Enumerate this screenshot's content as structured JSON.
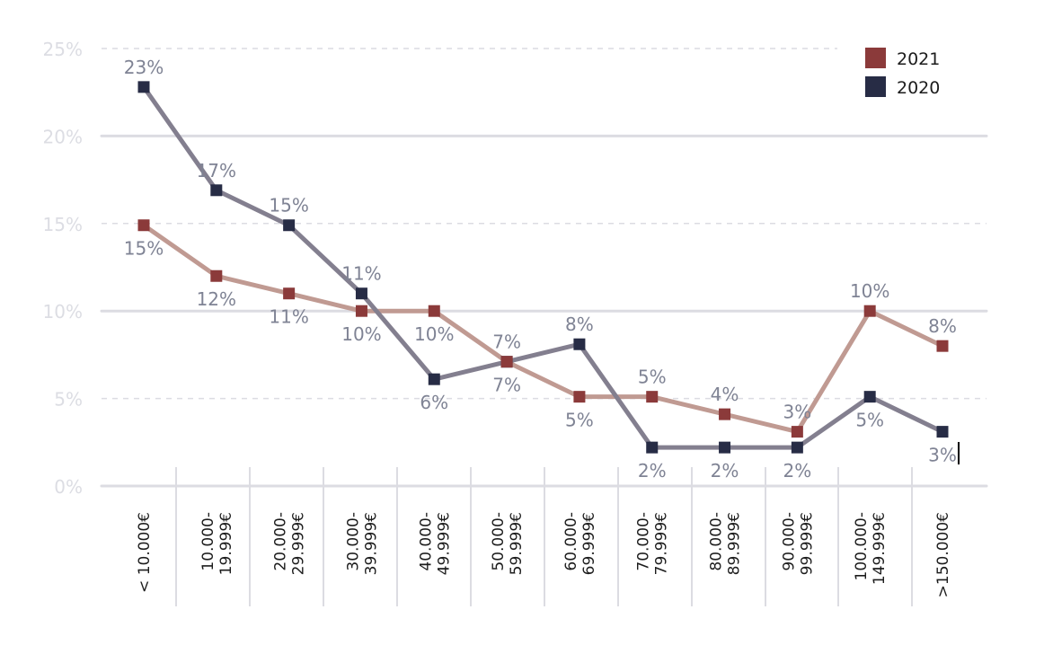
{
  "chart_data": {
    "type": "line",
    "title": "",
    "xlabel": "",
    "ylabel": "",
    "ylim": [
      0,
      25
    ],
    "yticks": [
      0,
      5,
      10,
      15,
      20,
      25
    ],
    "ytick_labels": [
      "0%",
      "5%",
      "10%",
      "15%",
      "20%",
      "25%"
    ],
    "grid": true,
    "legend_position": "top-right",
    "categories": [
      [
        "< 10.000€"
      ],
      [
        "10.000-",
        "19.999€"
      ],
      [
        "20.000-",
        "29.999€"
      ],
      [
        "30.000-",
        "39.999€"
      ],
      [
        "40.000-",
        "49.999€"
      ],
      [
        "50.000-",
        "59.999€"
      ],
      [
        "60.000-",
        "69.999€"
      ],
      [
        "70.000-",
        "79.999€"
      ],
      [
        "80.000-",
        "89.999€"
      ],
      [
        "90.000-",
        "99.999€"
      ],
      [
        "100.000-",
        "149.999€"
      ],
      [
        ">150.000€"
      ]
    ],
    "series": [
      {
        "name": "2021",
        "color": "#8b3a3a",
        "line_color": "#c09a92",
        "values": [
          14.9,
          12.0,
          11.0,
          10.0,
          10.0,
          7.1,
          5.1,
          5.1,
          4.1,
          3.1,
          10.0,
          8.0
        ],
        "labels": [
          "15%",
          "12%",
          "11%",
          "10%",
          "10%",
          "7%",
          "5%",
          "5%",
          "4%",
          "3%",
          "10%",
          "8%"
        ],
        "label_side": [
          "below",
          "below",
          "below",
          "below",
          "below",
          "above",
          "below",
          "above",
          "above",
          "above",
          "above",
          "above"
        ]
      },
      {
        "name": "2020",
        "color": "#272c45",
        "line_color": "#837f8f",
        "values": [
          22.8,
          16.9,
          14.9,
          11.0,
          6.1,
          7.1,
          8.1,
          2.2,
          2.2,
          2.2,
          5.1,
          3.1
        ],
        "labels": [
          "23%",
          "17%",
          "15%",
          "11%",
          "6%",
          "7%",
          "8%",
          "2%",
          "2%",
          "2%",
          "5%",
          "3%"
        ],
        "label_side": [
          "above",
          "above",
          "above",
          "above",
          "below",
          "below",
          "above",
          "below",
          "below",
          "below",
          "below",
          "below"
        ]
      }
    ]
  },
  "colors": {
    "grid": "#dcdce2",
    "axis_text": "#dcdde3",
    "value_label": "#7f8394",
    "category_text": "#1c1c1c"
  }
}
